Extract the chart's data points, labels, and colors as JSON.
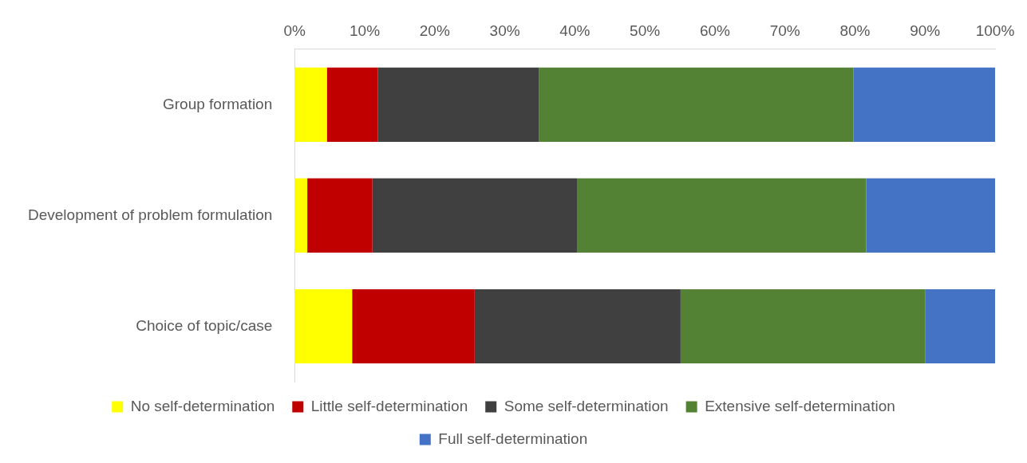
{
  "chart_data": {
    "type": "bar",
    "orientation": "horizontal",
    "stacked": true,
    "categories": [
      "Group formation",
      "Development of problem formulation",
      "Choice of topic/case"
    ],
    "series": [
      {
        "name": "No self-determination",
        "color": "#ffff00",
        "values": [
          4.6,
          1.8,
          8.2
        ]
      },
      {
        "name": "Little self-determination",
        "color": "#c00000",
        "values": [
          7.3,
          9.3,
          17.5
        ]
      },
      {
        "name": "Some self-determination",
        "color": "#404040",
        "values": [
          23.0,
          29.2,
          29.4
        ]
      },
      {
        "name": "Extensive self-determination",
        "color": "#548235",
        "values": [
          44.9,
          41.3,
          34.9
        ]
      },
      {
        "name": "Full self-determination",
        "color": "#4472c4",
        "values": [
          20.2,
          18.4,
          10.0
        ]
      }
    ],
    "xlim": [
      0,
      100
    ],
    "xticks": [
      {
        "value": 0,
        "label": "0%"
      },
      {
        "value": 10,
        "label": "10%"
      },
      {
        "value": 20,
        "label": "20%"
      },
      {
        "value": 30,
        "label": "30%"
      },
      {
        "value": 40,
        "label": "40%"
      },
      {
        "value": 50,
        "label": "50%"
      },
      {
        "value": 60,
        "label": "60%"
      },
      {
        "value": 70,
        "label": "70%"
      },
      {
        "value": 80,
        "label": "80%"
      },
      {
        "value": 90,
        "label": "90%"
      },
      {
        "value": 100,
        "label": "100%"
      }
    ],
    "grid": false,
    "legend": "bottom"
  }
}
